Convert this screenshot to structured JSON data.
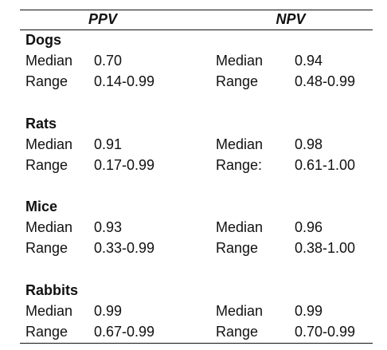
{
  "columns": {
    "ppv": "PPV",
    "npv": "NPV"
  },
  "groups": [
    {
      "species": "Dogs",
      "ppv": {
        "median_label": "Median",
        "median": "0.70",
        "range_label": "Range",
        "range": "0.14-0.99"
      },
      "npv": {
        "median_label": "Median",
        "median": "0.94",
        "range_label": "Range",
        "range": "0.48-0.99"
      }
    },
    {
      "species": "Rats",
      "ppv": {
        "median_label": "Median",
        "median": "0.91",
        "range_label": "Range",
        "range": "0.17-0.99"
      },
      "npv": {
        "median_label": "Median",
        "median": "0.98",
        "range_label": "Range:",
        "range": "0.61-1.00"
      }
    },
    {
      "species": "Mice",
      "ppv": {
        "median_label": "Median",
        "median": "0.93",
        "range_label": "Range",
        "range": "0.33-0.99"
      },
      "npv": {
        "median_label": "Median",
        "median": "0.96",
        "range_label": "Range",
        "range": "0.38-1.00"
      }
    },
    {
      "species": "Rabbits",
      "ppv": {
        "median_label": "Median",
        "median": "0.99",
        "range_label": "Range",
        "range": "0.67-0.99"
      },
      "npv": {
        "median_label": "Median",
        "median": "0.99",
        "range_label": "Range",
        "range": "0.70-0.99"
      }
    }
  ]
}
